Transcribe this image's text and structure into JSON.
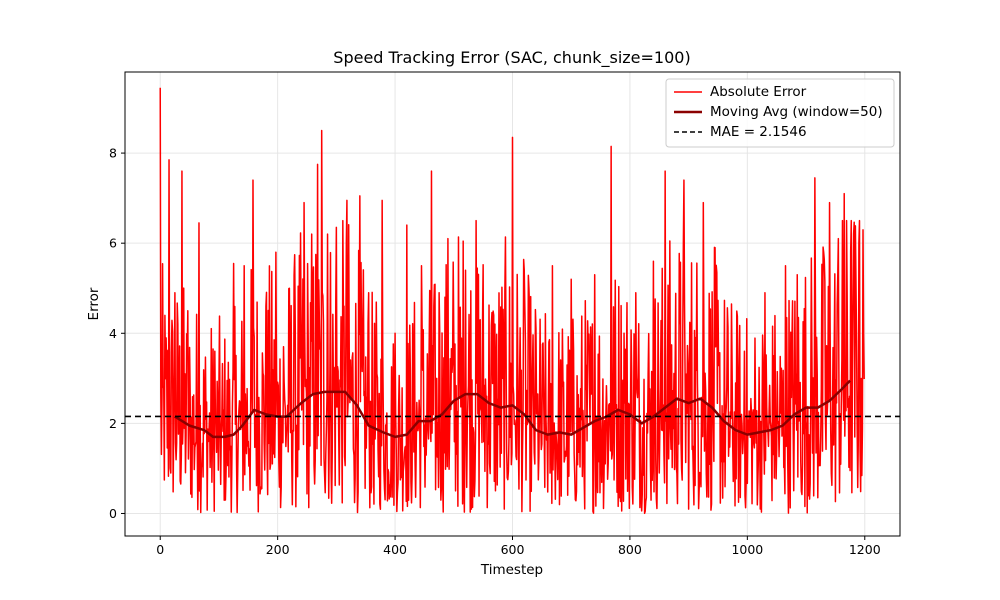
{
  "chart_data": {
    "type": "line",
    "title": "Speed Tracking Error (SAC, chunk_size=100)",
    "xlabel": "Timestep",
    "ylabel": "Error",
    "xlim": [
      -60,
      1260
    ],
    "ylim": [
      -0.5,
      9.8
    ],
    "xticks": [
      0,
      200,
      400,
      600,
      800,
      1000,
      1200
    ],
    "yticks": [
      0,
      2,
      4,
      6,
      8
    ],
    "grid": true,
    "legend_position": "top-right",
    "mae_label": "MAE = 2.1546",
    "series": [
      {
        "name": "Absolute Error",
        "color": "#ff0000",
        "style": "noisy",
        "n_points": 1200,
        "peaks": [
          {
            "x": 0,
            "y": 9.45
          },
          {
            "x": 15,
            "y": 7.85
          },
          {
            "x": 25,
            "y": 4.9
          },
          {
            "x": 37,
            "y": 7.6
          },
          {
            "x": 47,
            "y": 4.5
          },
          {
            "x": 66,
            "y": 6.45
          },
          {
            "x": 93,
            "y": 3.6
          },
          {
            "x": 125,
            "y": 5.55
          },
          {
            "x": 143,
            "y": 5.5
          },
          {
            "x": 158,
            "y": 7.4
          },
          {
            "x": 180,
            "y": 4.6
          },
          {
            "x": 197,
            "y": 5.8
          },
          {
            "x": 210,
            "y": 3.7
          },
          {
            "x": 230,
            "y": 4.1
          },
          {
            "x": 245,
            "y": 6.9
          },
          {
            "x": 260,
            "y": 4.9
          },
          {
            "x": 268,
            "y": 7.75
          },
          {
            "x": 275,
            "y": 8.5
          },
          {
            "x": 285,
            "y": 6.2
          },
          {
            "x": 300,
            "y": 6.35
          },
          {
            "x": 318,
            "y": 6.95
          },
          {
            "x": 340,
            "y": 7.05
          },
          {
            "x": 355,
            "y": 4.9
          },
          {
            "x": 378,
            "y": 6.95
          },
          {
            "x": 400,
            "y": 4.0
          },
          {
            "x": 420,
            "y": 6.4
          },
          {
            "x": 445,
            "y": 5.5
          },
          {
            "x": 462,
            "y": 7.6
          },
          {
            "x": 475,
            "y": 4.9
          },
          {
            "x": 490,
            "y": 6.1
          },
          {
            "x": 520,
            "y": 5.4
          },
          {
            "x": 545,
            "y": 4.3
          },
          {
            "x": 568,
            "y": 4.4
          },
          {
            "x": 600,
            "y": 8.35
          },
          {
            "x": 620,
            "y": 5.4
          },
          {
            "x": 640,
            "y": 4.1
          },
          {
            "x": 668,
            "y": 5.5
          },
          {
            "x": 700,
            "y": 5.2
          },
          {
            "x": 740,
            "y": 5.3
          },
          {
            "x": 768,
            "y": 8.15
          },
          {
            "x": 790,
            "y": 4.0
          },
          {
            "x": 810,
            "y": 4.9
          },
          {
            "x": 840,
            "y": 5.6
          },
          {
            "x": 860,
            "y": 7.6
          },
          {
            "x": 892,
            "y": 7.4
          },
          {
            "x": 925,
            "y": 6.9
          },
          {
            "x": 945,
            "y": 5.9
          },
          {
            "x": 995,
            "y": 3.6
          },
          {
            "x": 1030,
            "y": 4.9
          },
          {
            "x": 1045,
            "y": 3.5
          },
          {
            "x": 1065,
            "y": 5.5
          },
          {
            "x": 1085,
            "y": 5.3
          },
          {
            "x": 1115,
            "y": 7.45
          },
          {
            "x": 1130,
            "y": 5.8
          },
          {
            "x": 1140,
            "y": 6.9
          },
          {
            "x": 1155,
            "y": 6.1
          },
          {
            "x": 1165,
            "y": 7.1
          },
          {
            "x": 1180,
            "y": 4.8
          },
          {
            "x": 1190,
            "y": 6.0
          },
          {
            "x": 1198,
            "y": 4.0
          }
        ]
      },
      {
        "name": "Moving Avg (window=50)",
        "color": "#8b0000",
        "style": "smooth",
        "points": [
          {
            "x": 25,
            "y": 2.15
          },
          {
            "x": 50,
            "y": 1.95
          },
          {
            "x": 75,
            "y": 1.85
          },
          {
            "x": 90,
            "y": 1.7
          },
          {
            "x": 110,
            "y": 1.7
          },
          {
            "x": 125,
            "y": 1.75
          },
          {
            "x": 140,
            "y": 1.95
          },
          {
            "x": 160,
            "y": 2.3
          },
          {
            "x": 180,
            "y": 2.2
          },
          {
            "x": 200,
            "y": 2.15
          },
          {
            "x": 215,
            "y": 2.15
          },
          {
            "x": 240,
            "y": 2.45
          },
          {
            "x": 260,
            "y": 2.65
          },
          {
            "x": 280,
            "y": 2.7
          },
          {
            "x": 300,
            "y": 2.7
          },
          {
            "x": 315,
            "y": 2.7
          },
          {
            "x": 335,
            "y": 2.4
          },
          {
            "x": 355,
            "y": 1.95
          },
          {
            "x": 380,
            "y": 1.8
          },
          {
            "x": 400,
            "y": 1.7
          },
          {
            "x": 420,
            "y": 1.75
          },
          {
            "x": 440,
            "y": 2.05
          },
          {
            "x": 460,
            "y": 2.05
          },
          {
            "x": 480,
            "y": 2.2
          },
          {
            "x": 500,
            "y": 2.5
          },
          {
            "x": 520,
            "y": 2.65
          },
          {
            "x": 540,
            "y": 2.65
          },
          {
            "x": 560,
            "y": 2.45
          },
          {
            "x": 580,
            "y": 2.35
          },
          {
            "x": 600,
            "y": 2.4
          },
          {
            "x": 620,
            "y": 2.2
          },
          {
            "x": 640,
            "y": 1.85
          },
          {
            "x": 660,
            "y": 1.75
          },
          {
            "x": 680,
            "y": 1.8
          },
          {
            "x": 700,
            "y": 1.75
          },
          {
            "x": 720,
            "y": 1.9
          },
          {
            "x": 740,
            "y": 2.05
          },
          {
            "x": 760,
            "y": 2.15
          },
          {
            "x": 780,
            "y": 2.3
          },
          {
            "x": 800,
            "y": 2.2
          },
          {
            "x": 820,
            "y": 2.0
          },
          {
            "x": 840,
            "y": 2.15
          },
          {
            "x": 860,
            "y": 2.35
          },
          {
            "x": 880,
            "y": 2.55
          },
          {
            "x": 900,
            "y": 2.45
          },
          {
            "x": 920,
            "y": 2.55
          },
          {
            "x": 940,
            "y": 2.35
          },
          {
            "x": 960,
            "y": 2.05
          },
          {
            "x": 980,
            "y": 1.85
          },
          {
            "x": 1000,
            "y": 1.75
          },
          {
            "x": 1020,
            "y": 1.8
          },
          {
            "x": 1040,
            "y": 1.85
          },
          {
            "x": 1060,
            "y": 1.95
          },
          {
            "x": 1080,
            "y": 2.2
          },
          {
            "x": 1100,
            "y": 2.35
          },
          {
            "x": 1120,
            "y": 2.35
          },
          {
            "x": 1140,
            "y": 2.5
          },
          {
            "x": 1160,
            "y": 2.75
          },
          {
            "x": 1175,
            "y": 2.95
          }
        ]
      },
      {
        "name": "MAE = 2.1546",
        "color": "#000000",
        "style": "dashed",
        "y": 2.1546
      }
    ]
  }
}
